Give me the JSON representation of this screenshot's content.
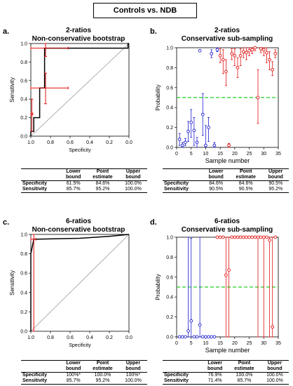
{
  "figure_title": "Controls vs. NDB",
  "colors": {
    "roc_line": "#000000",
    "err_red": "#e01010",
    "point_red": "#e01010",
    "point_blue": "#2020d0",
    "threshold": "#22cc22",
    "diag": "#999999"
  },
  "panels": [
    {
      "letter": "a.",
      "title_line1": "2-ratios",
      "title_line2": "Non-conservative bootstrap",
      "table": {
        "headers": [
          "",
          "Lower\nbound",
          "Point\nestimate",
          "Upper\nbound"
        ],
        "rows": [
          [
            "Specificity",
            "61.5%",
            "84.6%",
            "100.0%"
          ],
          [
            "Sensitivity",
            "85.7%",
            "95.2%",
            "100.0%"
          ]
        ]
      }
    },
    {
      "letter": "b.",
      "title_line1": "2-ratios",
      "title_line2": "Conservative sub-sampling",
      "table": {
        "headers": [
          "",
          "Lower\nbound",
          "Point\nestimate",
          "Upper\nbound"
        ],
        "rows": [
          [
            "Specificity",
            "84.6%",
            "84.6%",
            "90.5%"
          ],
          [
            "Sensitivity",
            "90.5%",
            "90.5%",
            "95.2%"
          ]
        ]
      }
    },
    {
      "letter": "c.",
      "title_line1": "6-ratios",
      "title_line2": "Non-conservative bootstrap",
      "table": {
        "headers": [
          "",
          "Lower\nbound",
          "Point\nestimate",
          "Upper\nbound"
        ],
        "rows": [
          [
            "Specificity",
            "100%*",
            "100.0%",
            "100%*"
          ],
          [
            "Sensitivity",
            "85.7%",
            "95.2%",
            "100.0%"
          ]
        ]
      }
    },
    {
      "letter": "d.",
      "title_line1": "6-ratios",
      "title_line2": "Conservative sub-sampling",
      "table": {
        "headers": [
          "",
          "Lower\nbound",
          "Point\nestimate",
          "Upper\nbound"
        ],
        "rows": [
          [
            "Specificity",
            "76.9%",
            "100.0%",
            "100.0%"
          ],
          [
            "Sensitivity",
            "71.4%",
            "85.7%",
            "100.0%"
          ]
        ]
      }
    }
  ],
  "chart_data": [
    {
      "type": "line",
      "panel": "a",
      "xlabel": "Specificity",
      "ylabel": "Sensitivity",
      "xlim": [
        1.0,
        0.0
      ],
      "ylim": [
        0.0,
        1.0
      ],
      "xticks": [
        "1.0",
        "0.8",
        "0.6",
        "0.4",
        "0.2",
        "0.0"
      ],
      "yticks": [
        "0.0",
        "0.2",
        "0.4",
        "0.6",
        "0.8",
        "1.0"
      ],
      "roc": [
        [
          1.0,
          0.0
        ],
        [
          1.0,
          0.05
        ],
        [
          0.97,
          0.05
        ],
        [
          0.97,
          0.2
        ],
        [
          0.91,
          0.2
        ],
        [
          0.91,
          0.52
        ],
        [
          0.86,
          0.52
        ],
        [
          0.86,
          0.95
        ],
        [
          0.01,
          0.95
        ],
        [
          0.01,
          1.0
        ],
        [
          0.0,
          1.0
        ]
      ],
      "error_bars": [
        {
          "x": 0.85,
          "y": 0.52,
          "xlo": 1.0,
          "xhi": 0.62,
          "ylo": 0.35,
          "yhi": 0.68
        },
        {
          "x": 0.85,
          "y": 0.95,
          "xlo": 1.0,
          "xhi": 0.62,
          "ylo": 0.86,
          "yhi": 1.0
        },
        {
          "x": 0.99,
          "y": 0.24,
          "xlo": 1.0,
          "xhi": 0.98,
          "ylo": 0.05,
          "yhi": 0.4
        }
      ]
    },
    {
      "type": "scatter",
      "panel": "b",
      "xlabel": "Sample number",
      "ylabel": "Probability",
      "xlim": [
        0,
        35
      ],
      "ylim": [
        0,
        1
      ],
      "xticks": [
        0,
        5,
        10,
        15,
        20,
        25,
        30,
        35
      ],
      "yticks": [
        "0.0",
        "0.2",
        "0.4",
        "0.6",
        "0.8",
        "1.0"
      ],
      "threshold": 0.5,
      "points": [
        {
          "x": 1,
          "y": 0.08,
          "lo": 0.02,
          "hi": 0.14,
          "group": "blue"
        },
        {
          "x": 2,
          "y": 0.02,
          "lo": 0.0,
          "hi": 0.05,
          "group": "blue"
        },
        {
          "x": 3,
          "y": 0.05,
          "lo": 0.02,
          "hi": 0.09,
          "group": "blue"
        },
        {
          "x": 4,
          "y": 0.16,
          "lo": 0.06,
          "hi": 0.26,
          "group": "blue"
        },
        {
          "x": 5,
          "y": 0.25,
          "lo": 0.1,
          "hi": 0.38,
          "group": "blue"
        },
        {
          "x": 6,
          "y": 0.17,
          "lo": 0.02,
          "hi": 0.3,
          "group": "blue"
        },
        {
          "x": 7,
          "y": 0.05,
          "lo": 0.0,
          "hi": 0.1,
          "group": "blue"
        },
        {
          "x": 8,
          "y": 0.97,
          "lo": 0.97,
          "hi": 0.97,
          "group": "blue"
        },
        {
          "x": 9,
          "y": 0.33,
          "lo": 0.12,
          "hi": 0.54,
          "group": "blue"
        },
        {
          "x": 10,
          "y": 0.02,
          "lo": 0.0,
          "hi": 0.22,
          "group": "blue"
        },
        {
          "x": 11,
          "y": 0.2,
          "lo": 0.06,
          "hi": 0.3,
          "group": "blue"
        },
        {
          "x": 12,
          "y": 0.94,
          "lo": 0.9,
          "hi": 0.98,
          "group": "blue"
        },
        {
          "x": 13,
          "y": 0.02,
          "lo": 0.0,
          "hi": 0.05,
          "group": "blue"
        },
        {
          "x": 14,
          "y": 0.98,
          "lo": 0.96,
          "hi": 1.0,
          "group": "blue"
        },
        {
          "x": 15,
          "y": 0.92,
          "lo": 0.85,
          "hi": 0.99,
          "group": "red"
        },
        {
          "x": 16,
          "y": 0.88,
          "lo": 0.74,
          "hi": 0.98,
          "group": "red"
        },
        {
          "x": 17,
          "y": 0.76,
          "lo": 0.62,
          "hi": 0.88,
          "group": "red"
        },
        {
          "x": 18,
          "y": 0.02,
          "lo": 0.0,
          "hi": 0.04,
          "group": "red"
        },
        {
          "x": 19,
          "y": 0.94,
          "lo": 0.88,
          "hi": 0.99,
          "group": "red"
        },
        {
          "x": 20,
          "y": 0.92,
          "lo": 0.82,
          "hi": 0.99,
          "group": "red"
        },
        {
          "x": 21,
          "y": 0.8,
          "lo": 0.7,
          "hi": 0.9,
          "group": "red"
        },
        {
          "x": 22,
          "y": 0.92,
          "lo": 0.82,
          "hi": 0.99,
          "group": "red"
        },
        {
          "x": 23,
          "y": 0.96,
          "lo": 0.9,
          "hi": 1.0,
          "group": "red"
        },
        {
          "x": 24,
          "y": 0.95,
          "lo": 0.88,
          "hi": 1.0,
          "group": "red"
        },
        {
          "x": 25,
          "y": 0.97,
          "lo": 0.92,
          "hi": 1.0,
          "group": "red"
        },
        {
          "x": 26,
          "y": 0.98,
          "lo": 0.94,
          "hi": 1.0,
          "group": "red"
        },
        {
          "x": 27,
          "y": 1.0,
          "lo": 0.97,
          "hi": 1.0,
          "group": "red"
        },
        {
          "x": 28,
          "y": 0.5,
          "lo": 0.24,
          "hi": 0.78,
          "group": "red"
        },
        {
          "x": 29,
          "y": 0.99,
          "lo": 0.95,
          "hi": 1.0,
          "group": "red"
        },
        {
          "x": 30,
          "y": 0.98,
          "lo": 0.92,
          "hi": 1.0,
          "group": "red"
        },
        {
          "x": 31,
          "y": 0.95,
          "lo": 0.85,
          "hi": 1.0,
          "group": "red"
        },
        {
          "x": 32,
          "y": 0.88,
          "lo": 0.78,
          "hi": 0.96,
          "group": "red"
        },
        {
          "x": 33,
          "y": 0.78,
          "lo": 0.72,
          "hi": 0.86,
          "group": "red"
        },
        {
          "x": 34,
          "y": 0.94,
          "lo": 0.9,
          "hi": 0.98,
          "group": "red"
        }
      ]
    },
    {
      "type": "line",
      "panel": "c",
      "xlabel": "Specificity",
      "ylabel": "Sensitivity",
      "xlim": [
        1.0,
        0.0
      ],
      "ylim": [
        0.0,
        1.0
      ],
      "xticks": [
        "1.0",
        "0.8",
        "0.6",
        "0.4",
        "0.2",
        "0.0"
      ],
      "yticks": [
        "0.0",
        "0.2",
        "0.4",
        "0.6",
        "0.8",
        "1.0"
      ],
      "roc": [
        [
          1.0,
          0.0
        ],
        [
          1.0,
          0.8
        ],
        [
          0.97,
          0.95
        ],
        [
          0.5,
          0.96
        ],
        [
          0.2,
          0.98
        ],
        [
          0.0,
          1.0
        ]
      ],
      "error_bars": [
        {
          "x": 0.97,
          "y": 0.95,
          "xlo": 1.0,
          "xhi": 0.95,
          "ylo": 0.0,
          "yhi": 1.0
        }
      ]
    },
    {
      "type": "scatter",
      "panel": "d",
      "xlabel": "Sample number",
      "ylabel": "Probability",
      "xlim": [
        0,
        35
      ],
      "ylim": [
        0,
        1
      ],
      "xticks": [
        0,
        5,
        10,
        15,
        20,
        25,
        30,
        35
      ],
      "yticks": [
        "0.0",
        "0.2",
        "0.4",
        "0.6",
        "0.8",
        "1.0"
      ],
      "threshold": 0.5,
      "points": [
        {
          "x": 1,
          "y": 0.0,
          "lo": 0.0,
          "hi": 0.0,
          "group": "blue"
        },
        {
          "x": 2,
          "y": 0.0,
          "lo": 0.0,
          "hi": 0.0,
          "group": "blue"
        },
        {
          "x": 3,
          "y": 0.0,
          "lo": 0.0,
          "hi": 0.0,
          "group": "blue"
        },
        {
          "x": 4,
          "y": 0.06,
          "lo": 0.0,
          "hi": 1.0,
          "group": "blue"
        },
        {
          "x": 5,
          "y": 0.16,
          "lo": 0.0,
          "hi": 0.99,
          "group": "blue"
        },
        {
          "x": 6,
          "y": 0.0,
          "lo": 0.0,
          "hi": 0.0,
          "group": "blue"
        },
        {
          "x": 7,
          "y": 0.0,
          "lo": 0.0,
          "hi": 0.0,
          "group": "blue"
        },
        {
          "x": 8,
          "y": 0.12,
          "lo": 0.0,
          "hi": 1.0,
          "group": "blue"
        },
        {
          "x": 9,
          "y": 0.0,
          "lo": 0.0,
          "hi": 0.0,
          "group": "blue"
        },
        {
          "x": 10,
          "y": 0.0,
          "lo": 0.0,
          "hi": 0.0,
          "group": "blue"
        },
        {
          "x": 11,
          "y": 0.0,
          "lo": 0.0,
          "hi": 0.0,
          "group": "blue"
        },
        {
          "x": 12,
          "y": 0.0,
          "lo": 0.0,
          "hi": 0.0,
          "group": "blue"
        },
        {
          "x": 13,
          "y": 0.0,
          "lo": 0.0,
          "hi": 0.0,
          "group": "blue"
        },
        {
          "x": 14,
          "y": 1.0,
          "lo": 1.0,
          "hi": 1.0,
          "group": "red"
        },
        {
          "x": 15,
          "y": 1.0,
          "lo": 1.0,
          "hi": 1.0,
          "group": "red"
        },
        {
          "x": 16,
          "y": 1.0,
          "lo": 1.0,
          "hi": 1.0,
          "group": "red"
        },
        {
          "x": 17,
          "y": 0.62,
          "lo": 0.0,
          "hi": 1.0,
          "group": "red"
        },
        {
          "x": 18,
          "y": 0.67,
          "lo": 0.0,
          "hi": 1.0,
          "group": "red"
        },
        {
          "x": 19,
          "y": 1.0,
          "lo": 1.0,
          "hi": 1.0,
          "group": "red"
        },
        {
          "x": 20,
          "y": 1.0,
          "lo": 1.0,
          "hi": 1.0,
          "group": "red"
        },
        {
          "x": 21,
          "y": 1.0,
          "lo": 1.0,
          "hi": 1.0,
          "group": "red"
        },
        {
          "x": 22,
          "y": 1.0,
          "lo": 1.0,
          "hi": 1.0,
          "group": "red"
        },
        {
          "x": 23,
          "y": 1.0,
          "lo": 1.0,
          "hi": 1.0,
          "group": "red"
        },
        {
          "x": 24,
          "y": 1.0,
          "lo": 1.0,
          "hi": 1.0,
          "group": "red"
        },
        {
          "x": 25,
          "y": 1.0,
          "lo": 1.0,
          "hi": 1.0,
          "group": "red"
        },
        {
          "x": 26,
          "y": 1.0,
          "lo": 1.0,
          "hi": 1.0,
          "group": "red"
        },
        {
          "x": 27,
          "y": 1.0,
          "lo": 1.0,
          "hi": 1.0,
          "group": "red"
        },
        {
          "x": 28,
          "y": 1.0,
          "lo": 0.0,
          "hi": 1.0,
          "group": "red"
        },
        {
          "x": 29,
          "y": 1.0,
          "lo": 1.0,
          "hi": 1.0,
          "group": "red"
        },
        {
          "x": 30,
          "y": 1.0,
          "lo": 0.0,
          "hi": 1.0,
          "group": "red"
        },
        {
          "x": 31,
          "y": 1.0,
          "lo": 1.0,
          "hi": 1.0,
          "group": "red"
        },
        {
          "x": 32,
          "y": 0.97,
          "lo": 0.0,
          "hi": 1.0,
          "group": "red"
        },
        {
          "x": 33,
          "y": 0.1,
          "lo": 0.0,
          "hi": 1.0,
          "group": "red"
        },
        {
          "x": 34,
          "y": 1.0,
          "lo": 1.0,
          "hi": 1.0,
          "group": "red"
        }
      ]
    }
  ]
}
